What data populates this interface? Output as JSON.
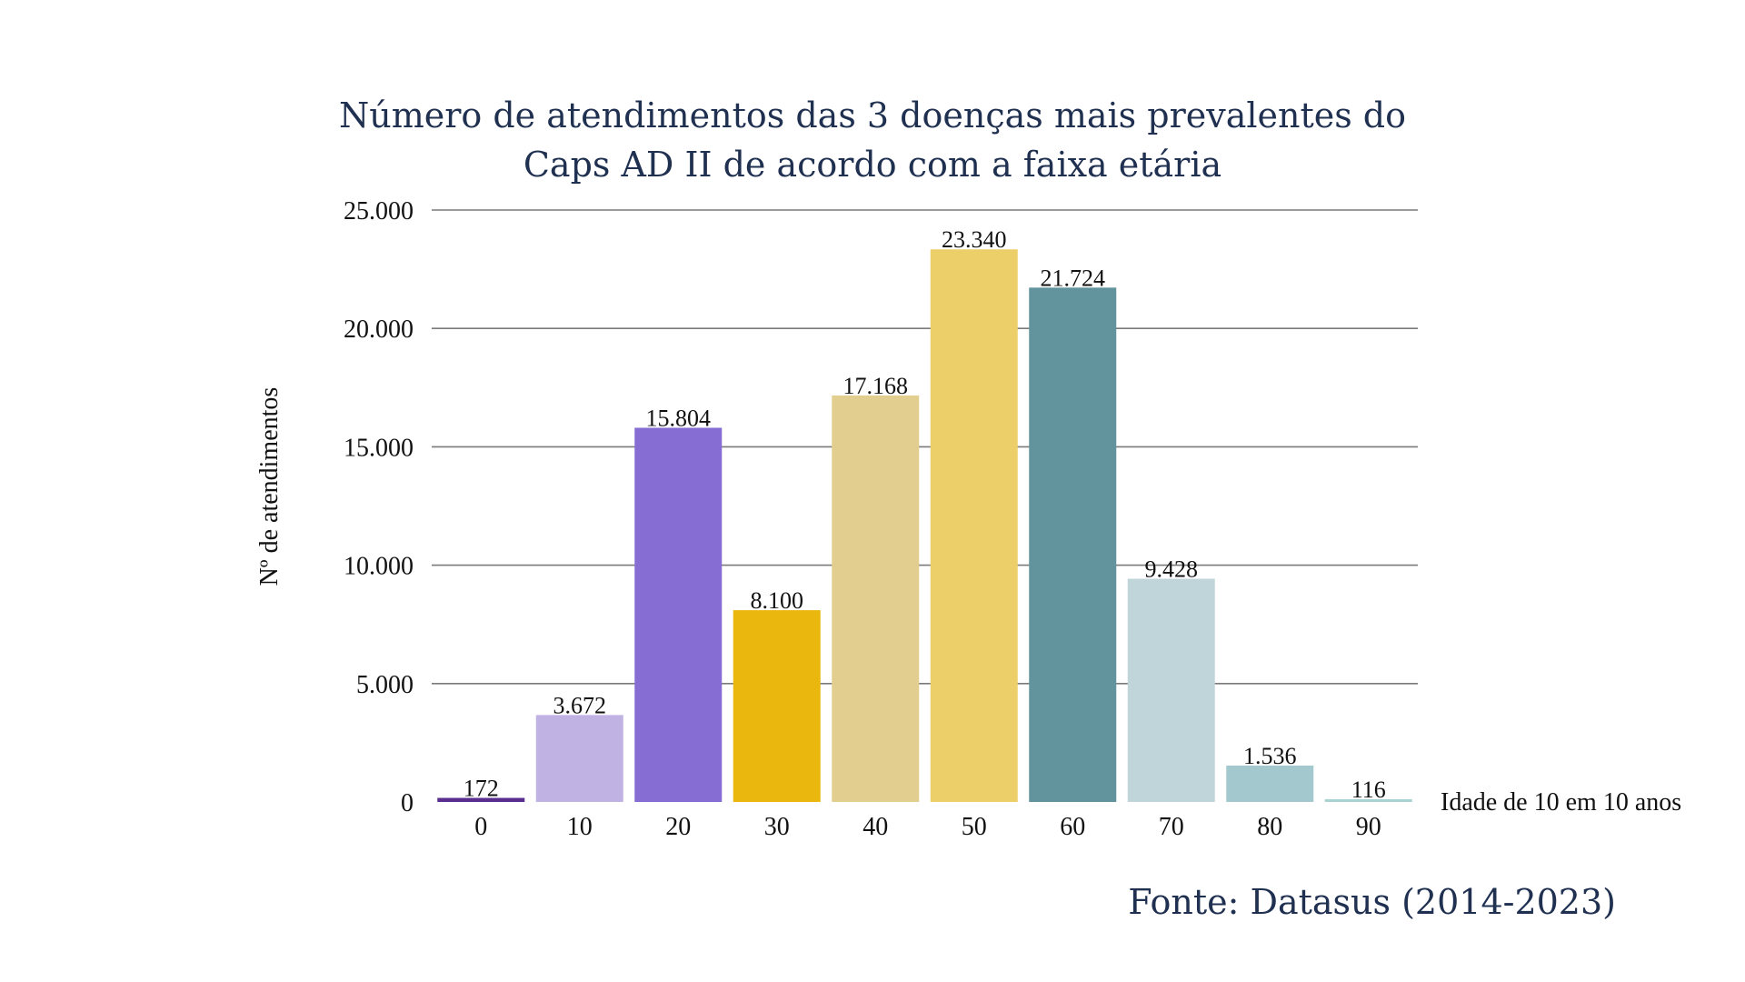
{
  "chart_data": {
    "type": "bar",
    "title_lines": [
      "Número de atendimentos das 3 doenças mais prevalentes  do",
      "Caps  AD II  de acordo com a faixa etária"
    ],
    "xlabel": "Idade de 10 em 10 anos",
    "ylabel": "Nº de  atendimentos",
    "categories": [
      "0",
      "10",
      "20",
      "30",
      "40",
      "50",
      "60",
      "70",
      "80",
      "90"
    ],
    "values": [
      172,
      3672,
      15804,
      8100,
      17168,
      23340,
      21724,
      9428,
      1536,
      116
    ],
    "value_labels": [
      "172",
      "3.672",
      "15.804",
      "8.100",
      "17.168",
      "23.340",
      "21.724",
      "9.428",
      "1.536",
      "116"
    ],
    "colors": [
      "#5b2d8e",
      "#c0b3e4",
      "#866dd4",
      "#eab70f",
      "#e2cf8f",
      "#edcf6a",
      "#62949d",
      "#c0d5da",
      "#a3c9cf",
      "#a9d3d3"
    ],
    "ylim": [
      0,
      25000
    ],
    "yticks": [
      0,
      5000,
      10000,
      15000,
      20000,
      25000
    ],
    "ytick_labels": [
      "0",
      "5.000",
      "10.000",
      "15.000",
      "20.000",
      "25.000"
    ],
    "grid": true,
    "legend": "none"
  },
  "source": "Fonte: Datasus (2014-2023)"
}
